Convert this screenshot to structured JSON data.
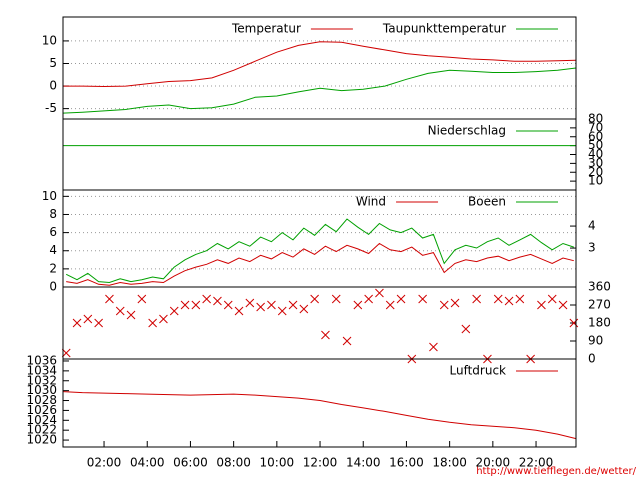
{
  "chart_data": [
    {
      "type": "line",
      "x": [
        0.1,
        1,
        2,
        3,
        4,
        5,
        6,
        7,
        8,
        9,
        10,
        11,
        12,
        13,
        14,
        15,
        16,
        17,
        18,
        19,
        20,
        21,
        22,
        23,
        23.85
      ],
      "xlim": [
        0.1,
        23.85
      ],
      "ylim": [
        -7.3,
        15.3
      ],
      "yticks": [
        -5,
        0,
        5,
        10
      ],
      "grid": true,
      "series": [
        {
          "name": "Temperatur",
          "color": "#d00000",
          "values": [
            0,
            0,
            -0.1,
            0,
            0.5,
            1,
            1.2,
            1.8,
            3.5,
            5.5,
            7.5,
            9,
            9.8,
            9.7,
            8.8,
            8,
            7.2,
            6.7,
            6.4,
            6,
            5.8,
            5.5,
            5.5,
            5.6,
            5.7
          ]
        },
        {
          "name": "Taupunkttemperatur",
          "color": "#00a000",
          "values": [
            -6,
            -5.8,
            -5.5,
            -5.2,
            -4.5,
            -4.2,
            -5,
            -4.8,
            -4,
            -2.5,
            -2.2,
            -1.3,
            -0.5,
            -1,
            -0.7,
            0,
            1.5,
            2.8,
            3.5,
            3.3,
            3,
            3,
            3.2,
            3.5,
            4
          ]
        }
      ]
    },
    {
      "type": "line",
      "x": [
        0.1,
        23.85
      ],
      "xlim": [
        0.1,
        23.85
      ],
      "y2lim": [
        0,
        80
      ],
      "y2ticks": [
        10,
        20,
        30,
        40,
        50,
        60,
        70,
        80
      ],
      "series": [
        {
          "name": "Niederschlag",
          "color": "#00a000",
          "axis": "y2",
          "values": [
            50,
            50
          ]
        }
      ]
    },
    {
      "type": "line",
      "x": [
        0.25,
        0.75,
        1.25,
        1.75,
        2.25,
        2.75,
        3.25,
        3.75,
        4.25,
        4.75,
        5.25,
        5.75,
        6.25,
        6.75,
        7.25,
        7.75,
        8.25,
        8.75,
        9.25,
        9.75,
        10.25,
        10.75,
        11.25,
        11.75,
        12.25,
        12.75,
        13.25,
        13.75,
        14.25,
        14.75,
        15.25,
        15.75,
        16.25,
        16.75,
        17.25,
        17.75,
        18.25,
        18.75,
        19.25,
        19.75,
        20.25,
        20.75,
        21.25,
        21.75,
        22.25,
        22.75,
        23.25,
        23.75
      ],
      "xlim": [
        0.1,
        23.85
      ],
      "ylim": [
        0,
        10.7
      ],
      "yticks": [
        0,
        2,
        4,
        6,
        8,
        10
      ],
      "grid": true,
      "y2lim": [
        1.23,
        5.64
      ],
      "y2ticks": [
        3,
        4
      ],
      "series": [
        {
          "name": "Wind",
          "color": "#d00000",
          "values": [
            0.6,
            0.4,
            0.8,
            0.3,
            0.2,
            0.5,
            0.3,
            0.4,
            0.6,
            0.5,
            1.2,
            1.8,
            2.2,
            2.5,
            3,
            2.6,
            3.2,
            2.8,
            3.5,
            3.1,
            3.8,
            3.3,
            4.2,
            3.6,
            4.5,
            3.9,
            4.6,
            4.2,
            3.7,
            4.8,
            4.1,
            3.9,
            4.4,
            3.5,
            3.8,
            1.6,
            2.6,
            3,
            2.8,
            3.2,
            3.4,
            2.9,
            3.3,
            3.6,
            3.1,
            2.6,
            3.2,
            2.9
          ]
        },
        {
          "name": "Boeen",
          "color": "#00a000",
          "values": [
            1.4,
            0.8,
            1.5,
            0.6,
            0.5,
            0.9,
            0.6,
            0.8,
            1.1,
            0.9,
            2.2,
            3,
            3.6,
            4,
            4.8,
            4.2,
            5,
            4.5,
            5.5,
            5,
            6,
            5.2,
            6.5,
            5.7,
            6.9,
            6.1,
            7.5,
            6.6,
            5.8,
            7,
            6.3,
            6,
            6.5,
            5.4,
            5.8,
            2.6,
            4.1,
            4.6,
            4.3,
            5,
            5.4,
            4.6,
            5.2,
            5.8,
            4.9,
            4.1,
            4.8,
            4.4
          ]
        }
      ]
    },
    {
      "type": "scatter",
      "x": [
        0.25,
        0.75,
        1.25,
        1.75,
        2.25,
        2.75,
        3.25,
        3.75,
        4.25,
        4.75,
        5.25,
        5.75,
        6.25,
        6.75,
        7.25,
        7.75,
        8.25,
        8.75,
        9.25,
        9.75,
        10.25,
        10.75,
        11.25,
        11.75,
        12.25,
        12.75,
        13.25,
        13.75,
        14.25,
        14.75,
        15.25,
        15.75,
        16.25,
        16.75,
        17.25,
        17.75,
        18.25,
        18.75,
        19.25,
        19.75,
        20.25,
        20.75,
        21.25,
        21.75,
        22.25,
        22.75,
        23.25,
        23.75
      ],
      "xlim": [
        0.1,
        23.85
      ],
      "y2lim": [
        0,
        360
      ],
      "y2ticks": [
        0,
        90,
        180,
        270,
        360
      ],
      "series": [
        {
          "color": "#d00000",
          "axis": "y2",
          "values": [
            30,
            180,
            200,
            180,
            300,
            240,
            220,
            300,
            180,
            200,
            240,
            270,
            270,
            300,
            290,
            270,
            240,
            280,
            260,
            270,
            240,
            270,
            250,
            300,
            120,
            300,
            90,
            270,
            300,
            330,
            270,
            300,
            0,
            300,
            60,
            270,
            280,
            150,
            300,
            0,
            300,
            290,
            300,
            0,
            270,
            300,
            270,
            180
          ]
        }
      ]
    },
    {
      "type": "line",
      "x": [
        0.1,
        1,
        2,
        3,
        4,
        5,
        6,
        7,
        8,
        9,
        10,
        11,
        12,
        13,
        14,
        15,
        16,
        17,
        18,
        19,
        20,
        21,
        22,
        23,
        23.85
      ],
      "xlim": [
        0.1,
        23.85
      ],
      "xticks": [
        {
          "value": 2,
          "label": "02:00"
        },
        {
          "value": 4,
          "label": "04:00"
        },
        {
          "value": 6,
          "label": "06:00"
        },
        {
          "value": 8,
          "label": "08:00"
        },
        {
          "value": 10,
          "label": "10:00"
        },
        {
          "value": 12,
          "label": "12:00"
        },
        {
          "value": 14,
          "label": "14:00"
        },
        {
          "value": 16,
          "label": "16:00"
        },
        {
          "value": 18,
          "label": "18:00"
        },
        {
          "value": 20,
          "label": "20:00"
        },
        {
          "value": 22,
          "label": "22:00"
        }
      ],
      "ylim": [
        1018.6,
        1036.4
      ],
      "yticks": [
        1020,
        1022,
        1024,
        1026,
        1028,
        1030,
        1032,
        1034,
        1036
      ],
      "series": [
        {
          "name": "Luftdruck",
          "color": "#d00000",
          "values": [
            1029.8,
            1029.6,
            1029.5,
            1029.4,
            1029.3,
            1029.2,
            1029.1,
            1029.2,
            1029.3,
            1029.1,
            1028.8,
            1028.5,
            1028,
            1027.2,
            1026.5,
            1025.8,
            1025,
            1024.2,
            1023.6,
            1023.1,
            1022.8,
            1022.5,
            1022,
            1021.2,
            1020.3
          ]
        }
      ]
    }
  ],
  "source": "http://www.tiefflegen.de/wetter/"
}
